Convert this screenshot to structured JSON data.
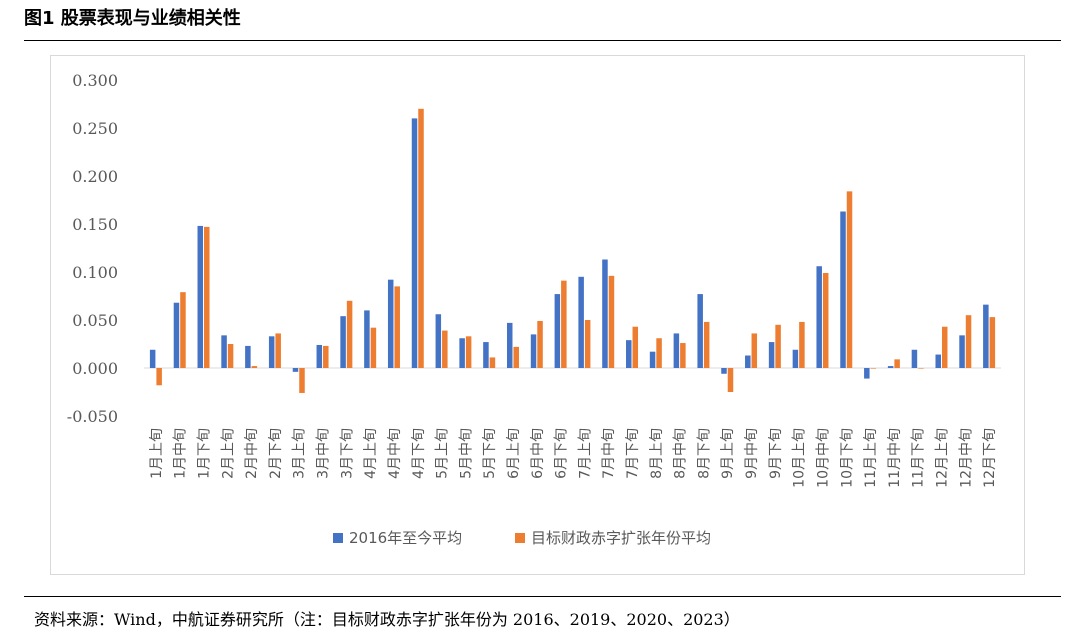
{
  "figure": {
    "title": "图1  股票表现与业绩相关性",
    "source": "资料来源：Wind，中航证券研究所（注：目标财政赤字扩张年份为 2016、2019、2020、2023）"
  },
  "chart_data": {
    "type": "bar",
    "title": "",
    "xlabel": "",
    "ylabel": "",
    "ylim": [
      -0.05,
      0.3
    ],
    "yticks": [
      "0.300",
      "0.250",
      "0.200",
      "0.150",
      "0.100",
      "0.050",
      "0.000",
      "-0.050"
    ],
    "grid": false,
    "legend": "bottom",
    "categories": [
      "1月上旬",
      "1月中旬",
      "1月下旬",
      "2月上旬",
      "2月中旬",
      "2月下旬",
      "3月上旬",
      "3月中旬",
      "3月下旬",
      "4月上旬",
      "4月中旬",
      "4月下旬",
      "5月上旬",
      "5月中旬",
      "5月下旬",
      "6月上旬",
      "6月中旬",
      "6月下旬",
      "7月上旬",
      "7月中旬",
      "7月下旬",
      "8月上旬",
      "8月中旬",
      "8月下旬",
      "9月上旬",
      "9月中旬",
      "9月下旬",
      "10月上旬",
      "10月中旬",
      "10月下旬",
      "11月上旬",
      "11月中旬",
      "11月下旬",
      "12月上旬",
      "12月中旬",
      "12月下旬"
    ],
    "series": [
      {
        "name": "2016年至今平均",
        "color": "#4472c4",
        "values": [
          0.019,
          0.068,
          0.148,
          0.034,
          0.023,
          0.033,
          -0.004,
          0.024,
          0.054,
          0.06,
          0.092,
          0.26,
          0.056,
          0.031,
          0.027,
          0.047,
          0.035,
          0.077,
          0.095,
          0.113,
          0.029,
          0.017,
          0.036,
          0.077,
          -0.006,
          0.013,
          0.027,
          0.019,
          0.106,
          0.163,
          -0.011,
          0.002,
          0.019,
          0.014,
          0.034,
          0.066
        ]
      },
      {
        "name": "目标财政赤字扩张年份平均",
        "color": "#ed7d31",
        "values": [
          -0.018,
          0.079,
          0.147,
          0.025,
          0.002,
          0.036,
          -0.026,
          0.023,
          0.07,
          0.042,
          0.085,
          0.27,
          0.039,
          0.033,
          0.011,
          0.022,
          0.049,
          0.091,
          0.05,
          0.096,
          0.043,
          0.031,
          0.026,
          0.048,
          -0.025,
          0.036,
          0.045,
          0.048,
          0.099,
          0.184,
          0.0,
          0.009,
          0.0,
          0.043,
          0.055,
          0.053
        ]
      }
    ]
  }
}
